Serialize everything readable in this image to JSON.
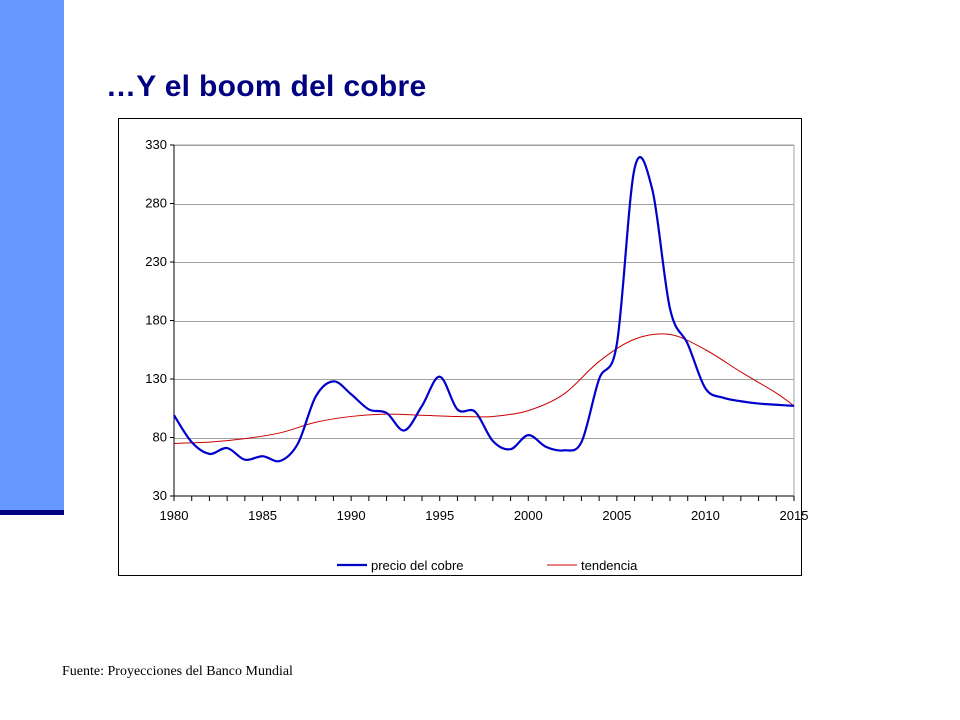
{
  "slide": {
    "title": "…Y el boom del cobre",
    "source": "Fuente: Proyecciones del Banco Mundial"
  },
  "colors": {
    "accent_bar": "#6699ff",
    "accent_dark": "#000080",
    "series_price": "#0000cc",
    "series_trend": "#cc0000",
    "grid": "#a0a0a0"
  },
  "chart_data": {
    "type": "line",
    "title": "",
    "xlabel": "",
    "ylabel": "",
    "xlim": [
      1980,
      2015
    ],
    "ylim": [
      30,
      330
    ],
    "x_ticks": [
      1980,
      1985,
      1990,
      1995,
      2000,
      2005,
      2010,
      2015
    ],
    "y_ticks": [
      30,
      80,
      130,
      180,
      230,
      280,
      330
    ],
    "grid": "horizontal",
    "legend_position": "bottom",
    "series": [
      {
        "name": "precio del cobre",
        "color": "#0000cc",
        "points": [
          [
            1980,
            99
          ],
          [
            1981,
            76
          ],
          [
            1982,
            66
          ],
          [
            1983,
            71
          ],
          [
            1984,
            61
          ],
          [
            1985,
            64
          ],
          [
            1986,
            60
          ],
          [
            1987,
            75
          ],
          [
            1988,
            115
          ],
          [
            1989,
            128
          ],
          [
            1990,
            117
          ],
          [
            1991,
            104
          ],
          [
            1992,
            101
          ],
          [
            1993,
            86
          ],
          [
            1994,
            107
          ],
          [
            1995,
            132
          ],
          [
            1996,
            104
          ],
          [
            1997,
            102
          ],
          [
            1998,
            77
          ],
          [
            1999,
            70
          ],
          [
            2000,
            82
          ],
          [
            2001,
            72
          ],
          [
            2002,
            69
          ],
          [
            2003,
            76
          ],
          [
            2004,
            130
          ],
          [
            2005,
            160
          ],
          [
            2006,
            310
          ],
          [
            2007,
            292
          ],
          [
            2008,
            190
          ],
          [
            2009,
            160
          ],
          [
            2010,
            122
          ],
          [
            2011,
            114
          ],
          [
            2012,
            111
          ],
          [
            2013,
            109
          ],
          [
            2014,
            108
          ],
          [
            2015,
            107
          ]
        ]
      },
      {
        "name": "tendencia",
        "color": "#cc0000",
        "points": [
          [
            1980,
            75
          ],
          [
            1982,
            76
          ],
          [
            1984,
            79
          ],
          [
            1986,
            84
          ],
          [
            1988,
            93
          ],
          [
            1990,
            98
          ],
          [
            1992,
            100
          ],
          [
            1994,
            99
          ],
          [
            1996,
            98
          ],
          [
            1998,
            98
          ],
          [
            2000,
            103
          ],
          [
            2002,
            117
          ],
          [
            2004,
            145
          ],
          [
            2006,
            164
          ],
          [
            2008,
            168
          ],
          [
            2010,
            155
          ],
          [
            2012,
            136
          ],
          [
            2014,
            118
          ],
          [
            2015,
            107
          ]
        ]
      }
    ]
  }
}
